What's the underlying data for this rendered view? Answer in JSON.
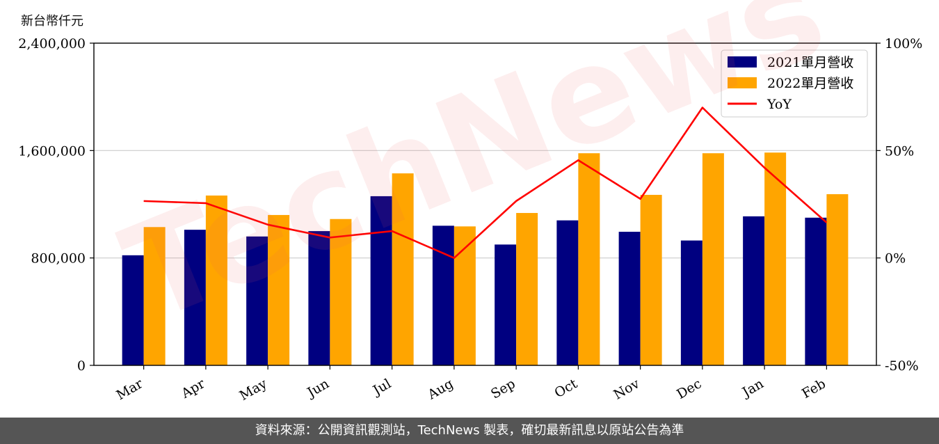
{
  "unit_label": "新台幣仟元",
  "watermark": "TechNews",
  "footer_text": "資料來源：公開資訊觀測站，TechNews 製表，確切最新訊息以原站公告為準",
  "colors": {
    "series_2021": "#000080",
    "series_2022": "#FFA500",
    "yoy": "#FF0000"
  },
  "chart_data": {
    "type": "bar",
    "categories": [
      "Mar",
      "Apr",
      "May",
      "Jun",
      "Jul",
      "Aug",
      "Sep",
      "Oct",
      "Nov",
      "Dec",
      "Jan",
      "Feb"
    ],
    "series": [
      {
        "name": "2021單月營收",
        "axis": "left",
        "values": [
          820000,
          1010000,
          960000,
          1000000,
          1260000,
          1040000,
          900000,
          1080000,
          995000,
          930000,
          1110000,
          1100000
        ]
      },
      {
        "name": "2022單月營收",
        "axis": "left",
        "values": [
          1030000,
          1265000,
          1120000,
          1090000,
          1430000,
          1035000,
          1135000,
          1580000,
          1270000,
          1580000,
          1585000,
          1275000
        ]
      },
      {
        "name": "YoY",
        "type": "line",
        "axis": "right",
        "values": [
          26.5,
          25.5,
          15.5,
          9.5,
          12.5,
          0,
          26.5,
          45.5,
          27.5,
          70,
          42,
          16.5
        ]
      }
    ],
    "ylim_left": [
      0,
      2400000
    ],
    "yticks_left": [
      "0",
      "800,000",
      "1,600,000",
      "2,400,000"
    ],
    "ylim_right": [
      -50,
      100
    ],
    "yticks_right": [
      "-50%",
      "0%",
      "50%",
      "100%"
    ],
    "grid": "horizontal",
    "legend_position": "top-right"
  }
}
